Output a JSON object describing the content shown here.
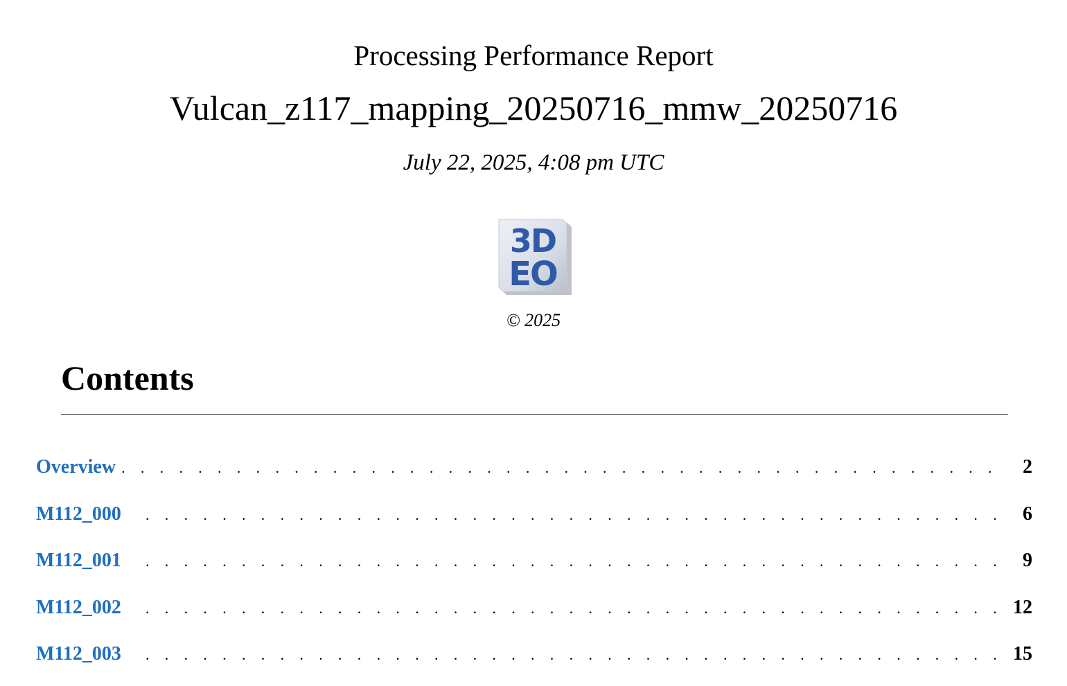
{
  "report": {
    "title": "Processing Performance Report",
    "project": "Vulcan_z117_mapping_20250716_mmw_20250716",
    "date": "July 22, 2025, 4:08 pm UTC",
    "copyright": "© 2025"
  },
  "logo": {
    "line1": "3D",
    "line2": "EO",
    "color": "#2e5aa8"
  },
  "contents": {
    "heading": "Contents",
    "leader": ". . . . . . . . . . . . . . . . . . . . . . . . . . . . . . . . . . . . . . . . . . . . . . . . . . . . . . . . . . . . . . . . . . . . . . . . . . . . . . . . . . . . . . . . . . . . . . . . . . . .",
    "entries": [
      {
        "label": "Overview",
        "page": "2"
      },
      {
        "label": "M112_000",
        "page": "6"
      },
      {
        "label": "M112_001",
        "page": "9"
      },
      {
        "label": "M112_002",
        "page": "12"
      },
      {
        "label": "M112_003",
        "page": "15"
      }
    ]
  },
  "colors": {
    "link": "#1f6fbf",
    "text": "#000000",
    "rule": "#555555"
  }
}
